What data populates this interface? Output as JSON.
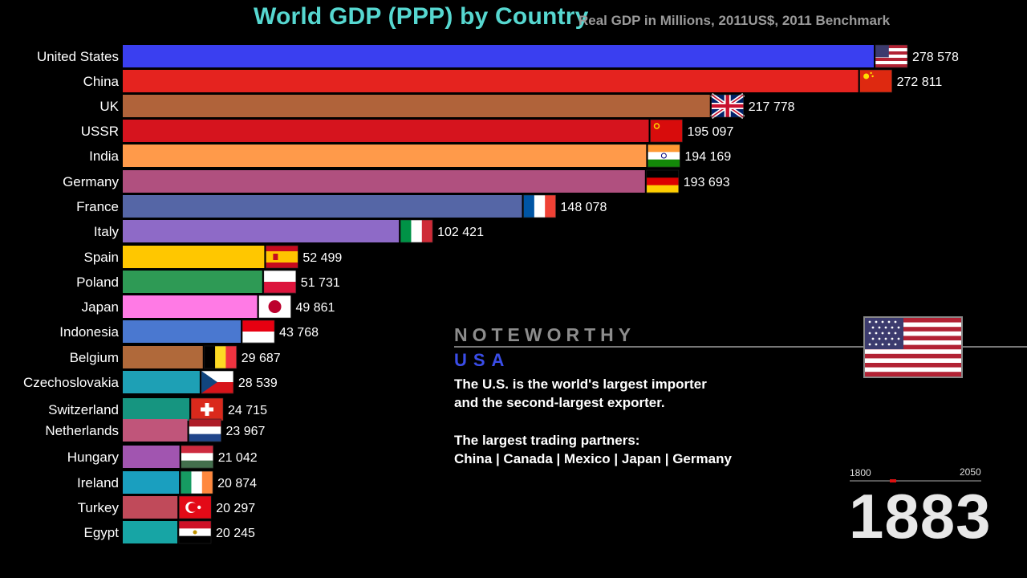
{
  "header": {
    "title": "World GDP (PPP) by Country",
    "subtitle": "Real GDP in Millions, 2011US$, 2011 Benchmark"
  },
  "chart_data": {
    "type": "bar",
    "orientation": "horizontal",
    "title": "World GDP (PPP) by Country",
    "subtitle": "Real GDP in Millions, 2011US$, 2011 Benchmark",
    "categories": [
      "United States",
      "China",
      "UK",
      "USSR",
      "India",
      "Germany",
      "France",
      "Italy",
      "Spain",
      "Poland",
      "Japan",
      "Indonesia",
      "Belgium",
      "Czechoslovakia",
      "Switzerland",
      "Netherlands",
      "Hungary",
      "Ireland",
      "Turkey",
      "Egypt"
    ],
    "values": [
      278578,
      272811,
      217778,
      195097,
      194169,
      193693,
      148078,
      102421,
      52499,
      51731,
      49861,
      43768,
      29687,
      28539,
      24715,
      23967,
      21042,
      20874,
      20297,
      20245
    ],
    "value_labels": [
      "278 578",
      "272 811",
      "217 778",
      "195 097",
      "194 169",
      "193 693",
      "148 078",
      "102 421",
      "52 499",
      "51 731",
      "49 861",
      "43 768",
      "29 687",
      "28 539",
      "24 715",
      "23 967",
      "21 042",
      "20 874",
      "20 297",
      "20 245"
    ],
    "colors": [
      "#3a3ff0",
      "#e5231f",
      "#b0633a",
      "#d6141e",
      "#ff9a4a",
      "#b0507f",
      "#5566a6",
      "#8e6ac7",
      "#ffc700",
      "#2e9a55",
      "#ff7ae5",
      "#4a78d0",
      "#b0693a",
      "#1ea0b5",
      "#169580",
      "#c0557a",
      "#a155b0",
      "#1a9fbf",
      "#c04a5a",
      "#17a5a5"
    ],
    "flags": [
      "us-flag-icon",
      "cn-flag-icon",
      "uk-flag-icon",
      "ussr-flag-icon",
      "in-flag-icon",
      "de-flag-icon",
      "fr-flag-icon",
      "it-flag-icon",
      "es-flag-icon",
      "pl-flag-icon",
      "jp-flag-icon",
      "id-flag-icon",
      "be-flag-icon",
      "cs-flag-icon",
      "ch-flag-icon",
      "nl-flag-icon",
      "hu-flag-icon",
      "ie-flag-icon",
      "tr-flag-icon",
      "eg-flag-icon"
    ],
    "xlim": [
      0,
      278578
    ],
    "grid": false,
    "legend": "none"
  },
  "noteworthy": {
    "heading": "NOTEWORTHY",
    "country": "USA",
    "line1": "The U.S. is the world's largest importer",
    "line2": "and the second-largest exporter.",
    "line3": "The largest trading partners:",
    "line4": "China | Canada | Mexico | Japan | Germany",
    "flag": "us-flag-icon"
  },
  "timeline": {
    "start": "1800",
    "end": "2050",
    "current": 1883,
    "year_label": "1883"
  }
}
